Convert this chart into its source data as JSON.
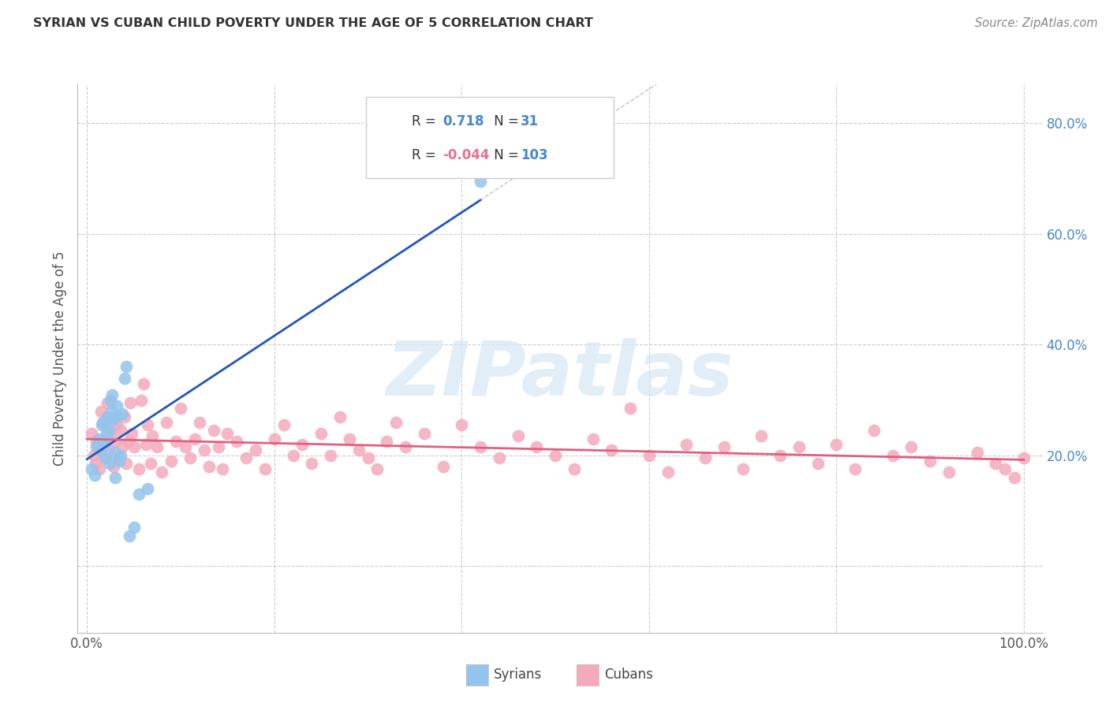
{
  "title": "SYRIAN VS CUBAN CHILD POVERTY UNDER THE AGE OF 5 CORRELATION CHART",
  "source": "Source: ZipAtlas.com",
  "ylabel": "Child Poverty Under the Age of 5",
  "xlim": [
    -0.01,
    1.02
  ],
  "ylim": [
    -0.12,
    0.87
  ],
  "syrian_R": 0.718,
  "syrian_N": 31,
  "cuban_R": -0.044,
  "cuban_N": 103,
  "syrian_color": "#94C4EC",
  "cuban_color": "#F4AABB",
  "syrian_line_color": "#2255BB",
  "cuban_line_color": "#E06080",
  "watermark": "ZIPatlas",
  "background_color": "#FFFFFF",
  "grid_color": "#CCCCCC",
  "syrians_x": [
    0.005,
    0.008,
    0.01,
    0.012,
    0.014,
    0.016,
    0.017,
    0.018,
    0.02,
    0.021,
    0.022,
    0.023,
    0.024,
    0.025,
    0.026,
    0.027,
    0.028,
    0.029,
    0.03,
    0.031,
    0.032,
    0.034,
    0.036,
    0.038,
    0.04,
    0.042,
    0.045,
    0.05,
    0.055,
    0.065,
    0.42
  ],
  "syrians_y": [
    0.175,
    0.165,
    0.215,
    0.23,
    0.21,
    0.255,
    0.26,
    0.22,
    0.195,
    0.24,
    0.27,
    0.245,
    0.185,
    0.3,
    0.28,
    0.31,
    0.265,
    0.205,
    0.16,
    0.27,
    0.29,
    0.19,
    0.2,
    0.275,
    0.34,
    0.36,
    0.055,
    0.07,
    0.13,
    0.14,
    0.695
  ],
  "cubans_x": [
    0.005,
    0.007,
    0.009,
    0.01,
    0.012,
    0.013,
    0.015,
    0.017,
    0.018,
    0.02,
    0.021,
    0.022,
    0.023,
    0.025,
    0.027,
    0.028,
    0.03,
    0.032,
    0.034,
    0.036,
    0.038,
    0.04,
    0.042,
    0.044,
    0.046,
    0.048,
    0.05,
    0.055,
    0.058,
    0.06,
    0.063,
    0.065,
    0.068,
    0.07,
    0.075,
    0.08,
    0.085,
    0.09,
    0.095,
    0.1,
    0.105,
    0.11,
    0.115,
    0.12,
    0.125,
    0.13,
    0.135,
    0.14,
    0.145,
    0.15,
    0.16,
    0.17,
    0.18,
    0.19,
    0.2,
    0.21,
    0.22,
    0.23,
    0.24,
    0.25,
    0.26,
    0.27,
    0.28,
    0.29,
    0.3,
    0.31,
    0.32,
    0.33,
    0.34,
    0.36,
    0.38,
    0.4,
    0.42,
    0.44,
    0.46,
    0.48,
    0.5,
    0.52,
    0.54,
    0.56,
    0.58,
    0.6,
    0.62,
    0.64,
    0.66,
    0.68,
    0.7,
    0.72,
    0.74,
    0.76,
    0.78,
    0.8,
    0.82,
    0.84,
    0.86,
    0.88,
    0.9,
    0.92,
    0.95,
    0.97,
    0.98,
    0.99,
    1.0
  ],
  "cubans_y": [
    0.24,
    0.2,
    0.185,
    0.225,
    0.215,
    0.175,
    0.28,
    0.22,
    0.195,
    0.26,
    0.23,
    0.295,
    0.21,
    0.24,
    0.265,
    0.18,
    0.225,
    0.255,
    0.195,
    0.245,
    0.215,
    0.27,
    0.185,
    0.225,
    0.295,
    0.24,
    0.215,
    0.175,
    0.3,
    0.33,
    0.22,
    0.255,
    0.185,
    0.235,
    0.215,
    0.17,
    0.26,
    0.19,
    0.225,
    0.285,
    0.215,
    0.195,
    0.23,
    0.26,
    0.21,
    0.18,
    0.245,
    0.215,
    0.175,
    0.24,
    0.225,
    0.195,
    0.21,
    0.175,
    0.23,
    0.255,
    0.2,
    0.22,
    0.185,
    0.24,
    0.2,
    0.27,
    0.23,
    0.21,
    0.195,
    0.175,
    0.225,
    0.26,
    0.215,
    0.24,
    0.18,
    0.255,
    0.215,
    0.195,
    0.235,
    0.215,
    0.2,
    0.175,
    0.23,
    0.21,
    0.285,
    0.2,
    0.17,
    0.22,
    0.195,
    0.215,
    0.175,
    0.235,
    0.2,
    0.215,
    0.185,
    0.22,
    0.175,
    0.245,
    0.2,
    0.215,
    0.19,
    0.17,
    0.205,
    0.185,
    0.175,
    0.16,
    0.195
  ]
}
